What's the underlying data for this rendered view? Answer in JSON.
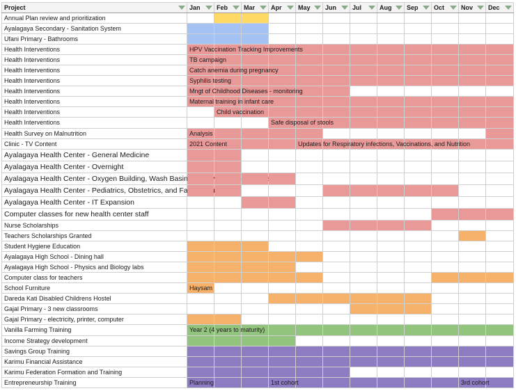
{
  "header": {
    "project": "Project",
    "months": [
      "Jan",
      "Feb",
      "Mar",
      "Apr",
      "May",
      "Jun",
      "Jul",
      "Aug",
      "Sep",
      "Oct",
      "Nov",
      "Dec"
    ]
  },
  "colors": {
    "yellow": "#ffd966",
    "blue": "#a4c2f4",
    "red": "#ea9999",
    "orange": "#f6b26b",
    "green": "#93c47d",
    "purple": "#8e7cc3"
  },
  "rows": [
    {
      "project": "Annual Plan review and prioritization",
      "fills": [
        [
          1,
          3,
          "y"
        ]
      ],
      "labels": []
    },
    {
      "project": "Ayalagaya Secondary - Sanitation System",
      "fills": [
        [
          0,
          3,
          "b"
        ]
      ],
      "labels": []
    },
    {
      "project": "Ufani Primary - Bathrooms",
      "fills": [
        [
          0,
          3,
          "b"
        ]
      ],
      "labels": []
    },
    {
      "project": "Health Interventions",
      "fills": [
        [
          0,
          12,
          "r"
        ]
      ],
      "labels": [
        [
          0,
          "HPV Vaccination Tracking Improvements"
        ]
      ]
    },
    {
      "project": "Health Interventions",
      "fills": [
        [
          0,
          12,
          "r"
        ]
      ],
      "labels": [
        [
          0,
          "TB campaign"
        ]
      ]
    },
    {
      "project": "Health Interventions",
      "fills": [
        [
          0,
          12,
          "r"
        ]
      ],
      "labels": [
        [
          0,
          "Catch anemia during pregnancy"
        ]
      ]
    },
    {
      "project": "Health Interventions",
      "fills": [
        [
          0,
          12,
          "r"
        ]
      ],
      "labels": [
        [
          0,
          "Syphilis testing"
        ]
      ]
    },
    {
      "project": "Health Interventions",
      "fills": [
        [
          0,
          6,
          "r"
        ]
      ],
      "labels": [
        [
          0,
          "Mngt of Childhood Diseases - monitoring"
        ]
      ]
    },
    {
      "project": "Health Interventions",
      "fills": [
        [
          0,
          12,
          "r"
        ]
      ],
      "labels": [
        [
          0,
          "Maternal training in infant care"
        ]
      ]
    },
    {
      "project": "Health Interventions",
      "fills": [
        [
          1,
          12,
          "r"
        ]
      ],
      "labels": [
        [
          1,
          "Child vaccination"
        ]
      ]
    },
    {
      "project": "Health Interventions",
      "fills": [
        [
          3,
          12,
          "r"
        ]
      ],
      "labels": [
        [
          3,
          "Safe disposal of stools"
        ]
      ]
    },
    {
      "project": "Health Survey on Malnutrition",
      "fills": [
        [
          0,
          5,
          "r"
        ],
        [
          11,
          12,
          "r"
        ]
      ],
      "labels": [
        [
          0,
          "Analysis"
        ]
      ]
    },
    {
      "project": "Clinic - TV Content",
      "fills": [
        [
          0,
          12,
          "r"
        ]
      ],
      "labels": [
        [
          0,
          "2021 Content"
        ],
        [
          4,
          "Updates for Respiratory infections, Vaccinations, and Nutrition"
        ]
      ]
    },
    {
      "project": "Ayalagaya Health Center - General Medicine",
      "tall": true,
      "fills": [
        [
          0,
          2,
          "r"
        ]
      ],
      "labels": []
    },
    {
      "project": "Ayalagaya Health Center - Overnight",
      "tall": true,
      "fills": [
        [
          0,
          2,
          "r"
        ]
      ],
      "labels": []
    },
    {
      "project": "Ayalagaya Health Center - Oxygen Building, Wash Basins, Walkways, Security Gate",
      "tall": true,
      "fills": [
        [
          0,
          4,
          "r"
        ]
      ],
      "labels": []
    },
    {
      "project": "Ayalagaya Health Center - Pediatrics, Obstetrics, and Family Planning",
      "tall": true,
      "fills": [
        [
          0,
          2,
          "r"
        ],
        [
          5,
          10,
          "r"
        ]
      ],
      "labels": []
    },
    {
      "project": "Ayalagaya Health Center - IT Expansion",
      "tall": true,
      "fills": [
        [
          2,
          4,
          "r"
        ]
      ],
      "labels": []
    },
    {
      "project": "Computer classes for new health center staff",
      "tall": true,
      "fills": [
        [
          9,
          12,
          "r"
        ]
      ],
      "labels": []
    },
    {
      "project": "Nurse Scholarships",
      "fills": [
        [
          5,
          9,
          "r"
        ]
      ],
      "labels": []
    },
    {
      "project": "Teachers Scholarships Granted",
      "fills": [
        [
          10,
          11,
          "o"
        ]
      ],
      "labels": []
    },
    {
      "project": "Student Hygiene Education",
      "fills": [
        [
          0,
          3,
          "o"
        ]
      ],
      "labels": []
    },
    {
      "project": "Ayalagaya High School - Dining hall",
      "fills": [
        [
          0,
          5,
          "o"
        ]
      ],
      "labels": []
    },
    {
      "project": "Ayalagaya High School - Physics and Biology labs",
      "fills": [
        [
          0,
          4,
          "o"
        ]
      ],
      "labels": []
    },
    {
      "project": "Computer class for teachers",
      "fills": [
        [
          0,
          5,
          "o"
        ],
        [
          9,
          12,
          "o"
        ]
      ],
      "labels": []
    },
    {
      "project": "School Furniture",
      "fills": [
        [
          0,
          1,
          "o"
        ]
      ],
      "labels": [
        [
          0,
          "Haysam"
        ]
      ]
    },
    {
      "project": "Dareda Kati Disabled Childrens Hostel",
      "fills": [
        [
          3,
          9,
          "o"
        ]
      ],
      "labels": []
    },
    {
      "project": "Gajal Primary - 3 new classrooms",
      "fills": [
        [
          6,
          9,
          "o"
        ]
      ],
      "labels": []
    },
    {
      "project": "Gajal Primary - electricity, printer, computer",
      "fills": [
        [
          0,
          2,
          "o"
        ]
      ],
      "labels": []
    },
    {
      "project": "Vanilla Farming Training",
      "fills": [
        [
          0,
          12,
          "g"
        ]
      ],
      "labels": [
        [
          0,
          "Year 2 (4 years to maturity)"
        ]
      ]
    },
    {
      "project": "Income Strategy development",
      "fills": [
        [
          0,
          4,
          "g"
        ]
      ],
      "labels": []
    },
    {
      "project": "Savings Group Training",
      "fills": [
        [
          0,
          12,
          "p"
        ]
      ],
      "labels": []
    },
    {
      "project": "Karimu Financial Assistance",
      "fills": [
        [
          0,
          12,
          "p"
        ]
      ],
      "labels": []
    },
    {
      "project": "Karimu Federation Formation and Training",
      "fills": [
        [
          0,
          6,
          "p"
        ]
      ],
      "labels": []
    },
    {
      "project": "Entrepreneurship Training",
      "fills": [
        [
          0,
          12,
          "p"
        ]
      ],
      "labels": [
        [
          0,
          "Planning"
        ],
        [
          3,
          "1st cohort"
        ],
        [
          10,
          "3rd cohort"
        ]
      ]
    }
  ]
}
